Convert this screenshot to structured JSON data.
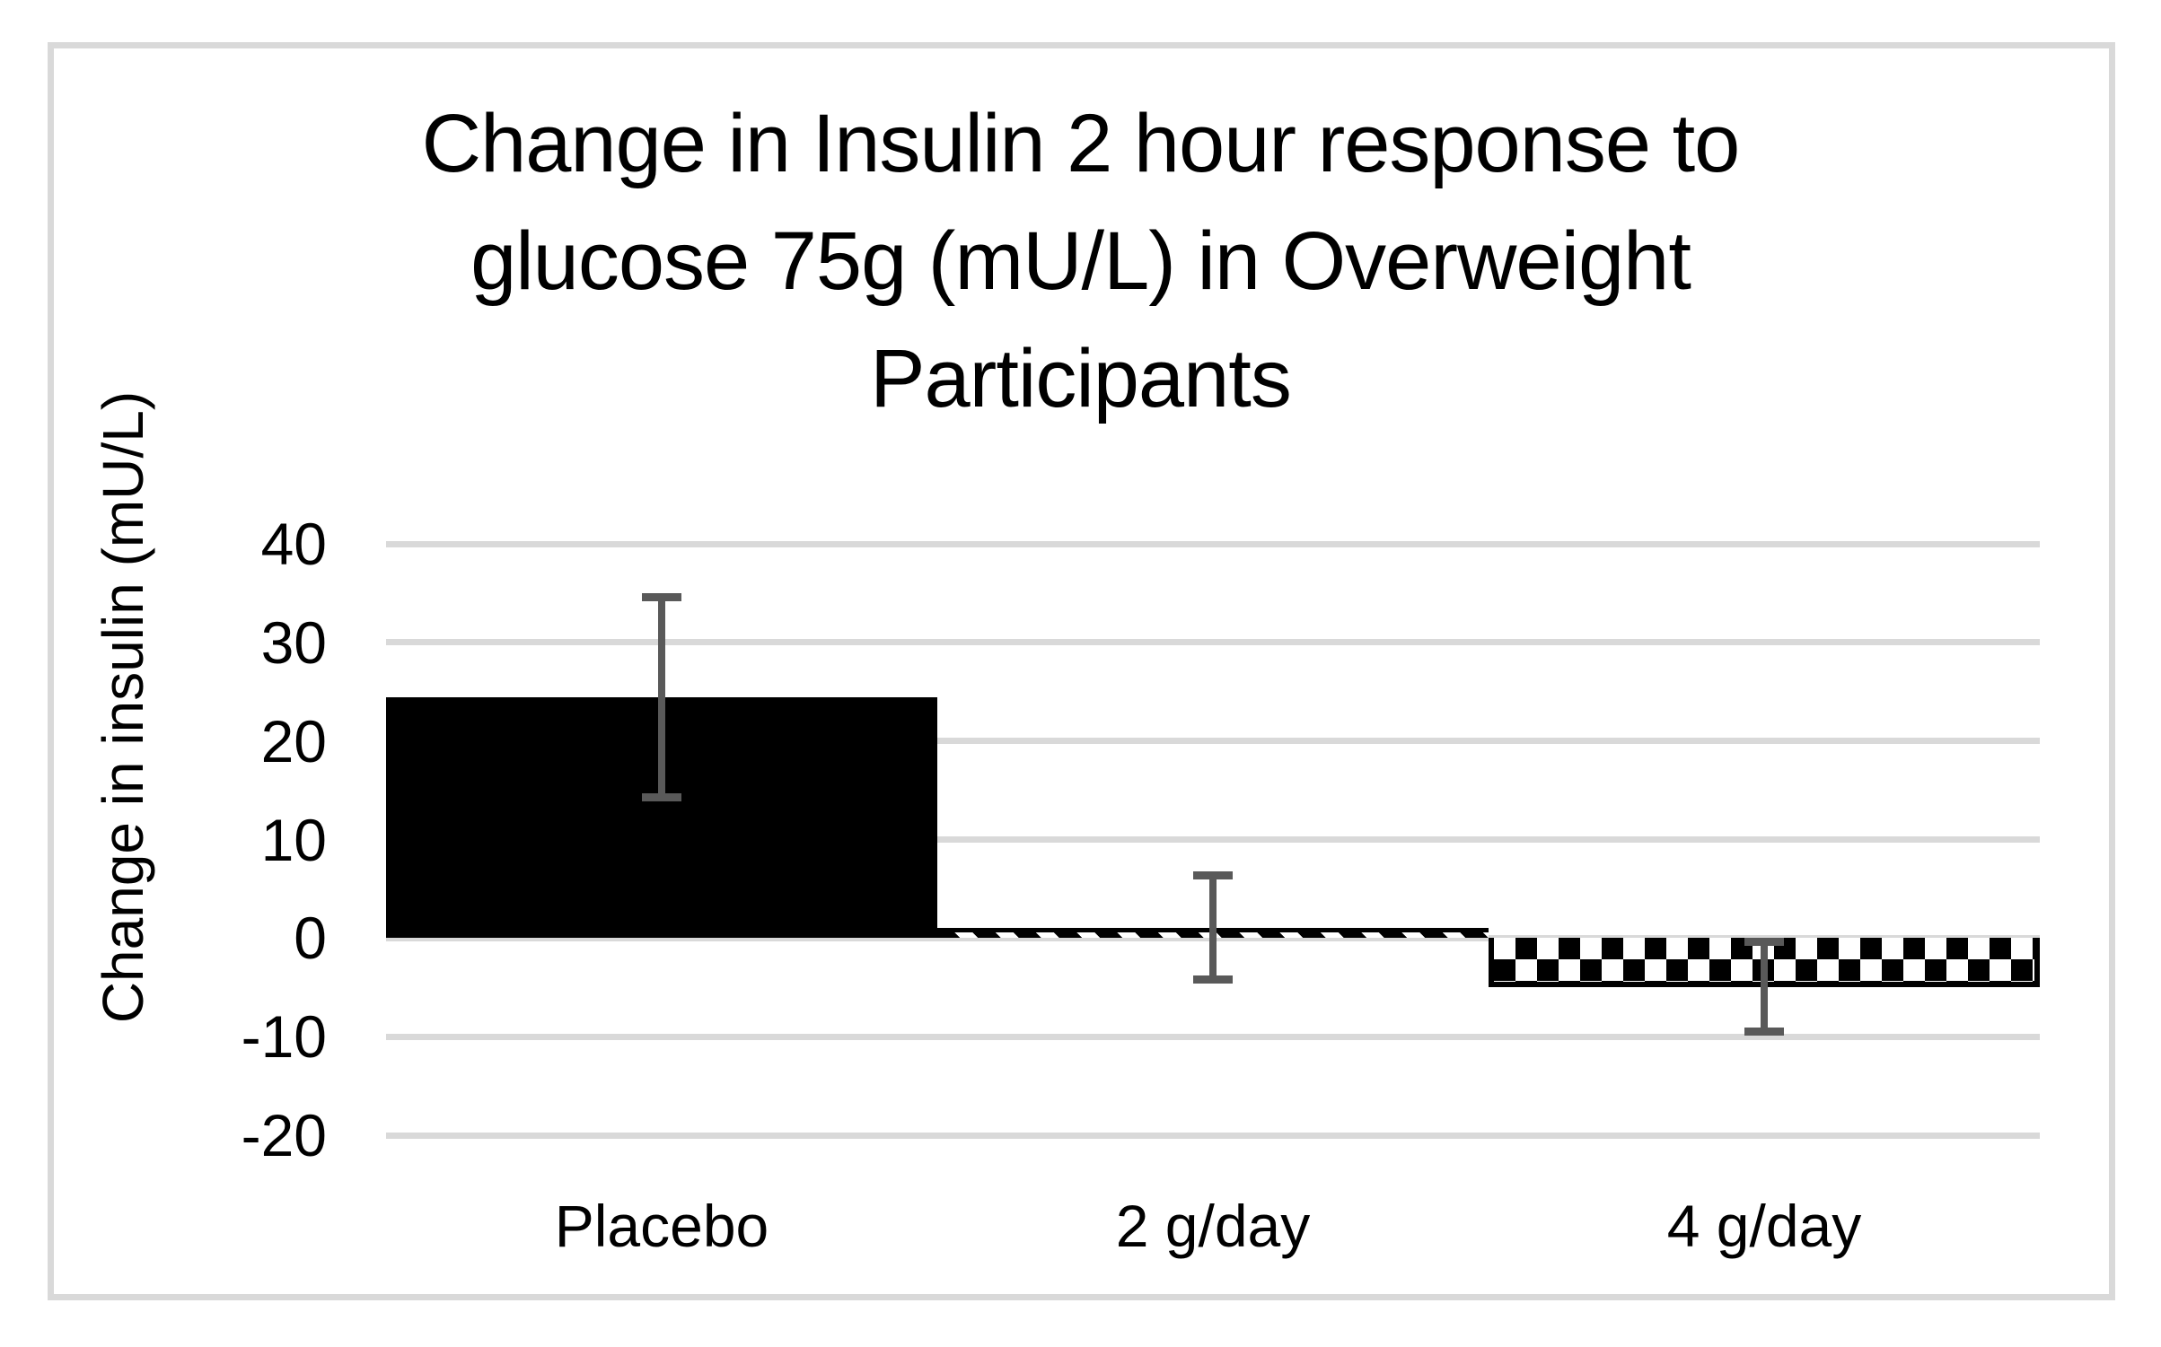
{
  "chart_data": {
    "type": "bar",
    "title": "Change in Insulin 2 hour response to glucose 75g (mU/L) in Overweight Participants",
    "title_lines": [
      "Change in Insulin 2 hour response to",
      "glucose 75g (mU/L) in Overweight",
      "Participants"
    ],
    "xlabel": "",
    "ylabel": "Change in insulin (mU/L)",
    "categories": [
      "Placebo",
      "2 g/day",
      "4 g/day"
    ],
    "values": [
      24.4,
      1.0,
      -5.0
    ],
    "error_low": [
      14.3,
      -4.2,
      -9.5
    ],
    "error_high": [
      34.6,
      6.4,
      -0.4
    ],
    "bar_fills": [
      "solid-black",
      "diagonal-stripes",
      "checkerboard"
    ],
    "yticks": [
      40,
      30,
      20,
      10,
      0,
      -10,
      -20
    ],
    "ylim": [
      -20,
      40
    ],
    "grid": true,
    "legend": "none",
    "colors": {
      "bar": "#000000",
      "error_bar": "#595959",
      "gridline": "#d9d9d9",
      "chart_border": "#d9d9d9",
      "background": "#ffffff",
      "text": "#000000"
    }
  }
}
